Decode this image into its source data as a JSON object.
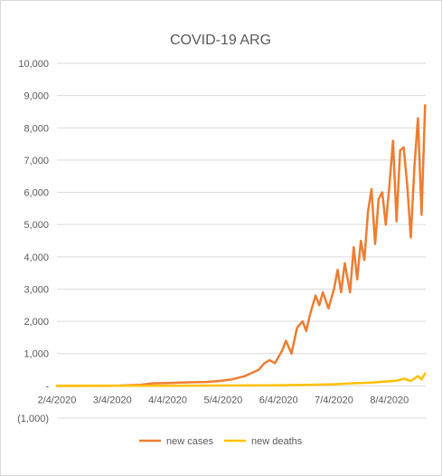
{
  "chart_data": {
    "type": "line",
    "title": "COVID-19 ARG",
    "xlabel": "",
    "ylabel": "",
    "x_axis_dates": [
      "2/4/2020",
      "3/4/2020",
      "4/4/2020",
      "5/4/2020",
      "6/4/2020",
      "7/4/2020",
      "8/4/2020"
    ],
    "ylim": [
      -1000,
      10000
    ],
    "y_ticks": [
      {
        "value": 10000,
        "label": "10,000"
      },
      {
        "value": 9000,
        "label": "9,000"
      },
      {
        "value": 8000,
        "label": "8,000"
      },
      {
        "value": 7000,
        "label": "7,000"
      },
      {
        "value": 6000,
        "label": "6,000"
      },
      {
        "value": 5000,
        "label": "5,000"
      },
      {
        "value": 4000,
        "label": "4,000"
      },
      {
        "value": 3000,
        "label": "3,000"
      },
      {
        "value": 2000,
        "label": "2,000"
      },
      {
        "value": 1000,
        "label": "1,000"
      },
      {
        "value": 0,
        "label": "-"
      },
      {
        "value": -1000,
        "label": "(1,000)"
      }
    ],
    "grid": true,
    "legend_position": "bottom",
    "series": [
      {
        "name": "new cases",
        "color": "#ed7d31",
        "points": [
          [
            "2/4/2020",
            0
          ],
          [
            "3/3/2020",
            0
          ],
          [
            "3/20/2020",
            30
          ],
          [
            "3/27/2020",
            80
          ],
          [
            "4/4/2020",
            90
          ],
          [
            "4/11/2020",
            100
          ],
          [
            "4/18/2020",
            110
          ],
          [
            "4/25/2020",
            120
          ],
          [
            "5/2/2020",
            150
          ],
          [
            "5/9/2020",
            200
          ],
          [
            "5/16/2020",
            300
          ],
          [
            "5/20/2020",
            400
          ],
          [
            "5/24/2020",
            500
          ],
          [
            "5/27/2020",
            700
          ],
          [
            "5/30/2020",
            800
          ],
          [
            "6/2/2020",
            700
          ],
          [
            "6/4/2020",
            900
          ],
          [
            "6/6/2020",
            1100
          ],
          [
            "6/8/2020",
            1400
          ],
          [
            "6/11/2020",
            1000
          ],
          [
            "6/14/2020",
            1800
          ],
          [
            "6/17/2020",
            2000
          ],
          [
            "6/19/2020",
            1700
          ],
          [
            "6/21/2020",
            2200
          ],
          [
            "6/24/2020",
            2800
          ],
          [
            "6/26/2020",
            2500
          ],
          [
            "6/28/2020",
            2900
          ],
          [
            "7/1/2020",
            2400
          ],
          [
            "7/4/2020",
            3000
          ],
          [
            "7/6/2020",
            3600
          ],
          [
            "7/8/2020",
            2900
          ],
          [
            "7/10/2020",
            3800
          ],
          [
            "7/13/2020",
            2900
          ],
          [
            "7/15/2020",
            4300
          ],
          [
            "7/17/2020",
            3300
          ],
          [
            "7/19/2020",
            4500
          ],
          [
            "7/21/2020",
            3900
          ],
          [
            "7/23/2020",
            5400
          ],
          [
            "7/25/2020",
            6100
          ],
          [
            "7/27/2020",
            4400
          ],
          [
            "7/29/2020",
            5800
          ],
          [
            "7/31/2020",
            6000
          ],
          [
            "8/2/2020",
            5000
          ],
          [
            "8/4/2020",
            6200
          ],
          [
            "8/6/2020",
            7600
          ],
          [
            "8/8/2020",
            5100
          ],
          [
            "8/10/2020",
            7300
          ],
          [
            "8/12/2020",
            7400
          ],
          [
            "8/14/2020",
            6200
          ],
          [
            "8/16/2020",
            4600
          ],
          [
            "8/18/2020",
            6800
          ],
          [
            "8/20/2020",
            8300
          ],
          [
            "8/22/2020",
            5300
          ],
          [
            "8/24/2020",
            8700
          ]
        ]
      },
      {
        "name": "new deaths",
        "color": "#ffc000",
        "points": [
          [
            "2/4/2020",
            0
          ],
          [
            "4/4/2020",
            5
          ],
          [
            "5/4/2020",
            10
          ],
          [
            "6/4/2020",
            20
          ],
          [
            "6/20/2020",
            30
          ],
          [
            "7/4/2020",
            50
          ],
          [
            "7/15/2020",
            80
          ],
          [
            "7/25/2020",
            100
          ],
          [
            "8/1/2020",
            130
          ],
          [
            "8/8/2020",
            160
          ],
          [
            "8/12/2020",
            220
          ],
          [
            "8/16/2020",
            150
          ],
          [
            "8/20/2020",
            300
          ],
          [
            "8/22/2020",
            200
          ],
          [
            "8/24/2020",
            380
          ]
        ]
      }
    ]
  }
}
